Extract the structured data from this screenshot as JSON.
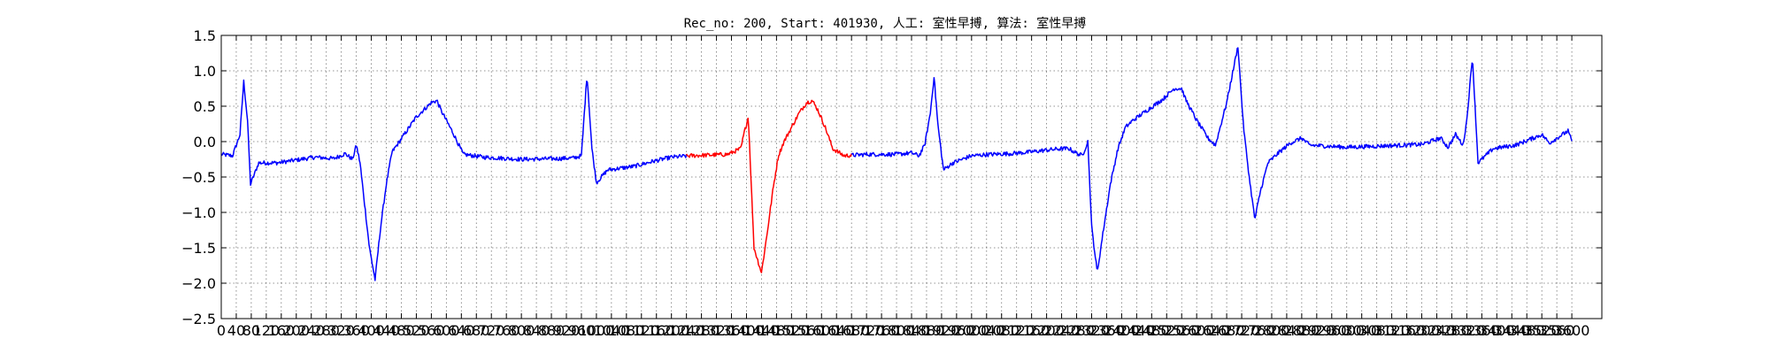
{
  "chart_data": {
    "type": "line",
    "title": "Rec_no: 200, Start: 401930, 人工: 室性早搏, 算法: 室性早搏",
    "xlabel": "",
    "ylabel": "",
    "xlim": [
      0,
      3680
    ],
    "ylim": [
      -2.5,
      1.5
    ],
    "grid": true,
    "yticks": [
      1.5,
      1.0,
      0.5,
      0.0,
      -0.5,
      -1.0,
      -1.5,
      -2.0,
      -2.5
    ],
    "ytick_labels": [
      "1.5",
      "1.0",
      "0.5",
      "0.0",
      "−0.5",
      "−1.0",
      "−1.5",
      "−2.0",
      "−2.5"
    ],
    "xtick_step": 40,
    "xtick_max": 3600,
    "series_colors": [
      "#0000ff",
      "#ff0000"
    ],
    "highlight_range": [
      1240,
      1680
    ],
    "x_end": 3600,
    "signal_points": [
      [
        0,
        -0.18
      ],
      [
        30,
        -0.2
      ],
      [
        50,
        0.1
      ],
      [
        60,
        0.85
      ],
      [
        70,
        0.3
      ],
      [
        78,
        -0.6
      ],
      [
        100,
        -0.3
      ],
      [
        150,
        -0.3
      ],
      [
        200,
        -0.26
      ],
      [
        250,
        -0.22
      ],
      [
        300,
        -0.24
      ],
      [
        330,
        -0.17
      ],
      [
        350,
        -0.25
      ],
      [
        360,
        -0.05
      ],
      [
        370,
        -0.3
      ],
      [
        395,
        -1.5
      ],
      [
        410,
        -1.95
      ],
      [
        425,
        -1.2
      ],
      [
        440,
        -0.6
      ],
      [
        455,
        -0.15
      ],
      [
        475,
        0.0
      ],
      [
        520,
        0.35
      ],
      [
        560,
        0.55
      ],
      [
        575,
        0.58
      ],
      [
        585,
        0.45
      ],
      [
        600,
        0.3
      ],
      [
        620,
        0.1
      ],
      [
        645,
        -0.18
      ],
      [
        700,
        -0.22
      ],
      [
        800,
        -0.25
      ],
      [
        900,
        -0.24
      ],
      [
        940,
        -0.23
      ],
      [
        960,
        -0.2
      ],
      [
        975,
        0.95
      ],
      [
        988,
        -0.1
      ],
      [
        1000,
        -0.58
      ],
      [
        1030,
        -0.4
      ],
      [
        1100,
        -0.35
      ],
      [
        1150,
        -0.28
      ],
      [
        1200,
        -0.22
      ],
      [
        1250,
        -0.2
      ],
      [
        1350,
        -0.18
      ],
      [
        1385,
        -0.1
      ],
      [
        1395,
        0.15
      ],
      [
        1405,
        0.35
      ],
      [
        1420,
        -1.5
      ],
      [
        1440,
        -1.85
      ],
      [
        1455,
        -1.3
      ],
      [
        1470,
        -0.7
      ],
      [
        1485,
        -0.2
      ],
      [
        1500,
        0.0
      ],
      [
        1540,
        0.4
      ],
      [
        1560,
        0.55
      ],
      [
        1575,
        0.58
      ],
      [
        1590,
        0.45
      ],
      [
        1610,
        0.2
      ],
      [
        1630,
        -0.1
      ],
      [
        1660,
        -0.2
      ],
      [
        1720,
        -0.18
      ],
      [
        1800,
        -0.18
      ],
      [
        1840,
        -0.16
      ],
      [
        1860,
        -0.2
      ],
      [
        1875,
        -0.05
      ],
      [
        1890,
        0.4
      ],
      [
        1900,
        0.92
      ],
      [
        1910,
        0.25
      ],
      [
        1925,
        -0.4
      ],
      [
        1950,
        -0.3
      ],
      [
        2000,
        -0.2
      ],
      [
        2050,
        -0.18
      ],
      [
        2100,
        -0.17
      ],
      [
        2150,
        -0.15
      ],
      [
        2200,
        -0.12
      ],
      [
        2240,
        -0.1
      ],
      [
        2260,
        -0.1
      ],
      [
        2275,
        -0.15
      ],
      [
        2295,
        -0.2
      ],
      [
        2310,
        0.0
      ],
      [
        2320,
        -1.2
      ],
      [
        2335,
        -1.85
      ],
      [
        2350,
        -1.3
      ],
      [
        2370,
        -0.6
      ],
      [
        2390,
        -0.1
      ],
      [
        2410,
        0.2
      ],
      [
        2430,
        0.3
      ],
      [
        2470,
        0.45
      ],
      [
        2510,
        0.6
      ],
      [
        2540,
        0.75
      ],
      [
        2560,
        0.75
      ],
      [
        2570,
        0.6
      ],
      [
        2600,
        0.3
      ],
      [
        2630,
        0.05
      ],
      [
        2650,
        -0.05
      ],
      [
        2680,
        0.55
      ],
      [
        2710,
        1.35
      ],
      [
        2725,
        0.2
      ],
      [
        2740,
        -0.5
      ],
      [
        2755,
        -1.1
      ],
      [
        2770,
        -0.7
      ],
      [
        2790,
        -0.3
      ],
      [
        2820,
        -0.15
      ],
      [
        2850,
        -0.02
      ],
      [
        2880,
        0.05
      ],
      [
        2900,
        -0.05
      ],
      [
        3000,
        -0.08
      ],
      [
        3100,
        -0.06
      ],
      [
        3200,
        -0.04
      ],
      [
        3250,
        0.05
      ],
      [
        3270,
        -0.08
      ],
      [
        3290,
        0.1
      ],
      [
        3310,
        -0.05
      ],
      [
        3320,
        0.3
      ],
      [
        3335,
        1.2
      ],
      [
        3350,
        -0.3
      ],
      [
        3370,
        -0.2
      ],
      [
        3390,
        -0.1
      ],
      [
        3450,
        -0.05
      ],
      [
        3520,
        0.1
      ],
      [
        3540,
        -0.02
      ],
      [
        3560,
        0.05
      ],
      [
        3575,
        0.1
      ],
      [
        3590,
        0.15
      ],
      [
        3600,
        0.0
      ]
    ]
  }
}
